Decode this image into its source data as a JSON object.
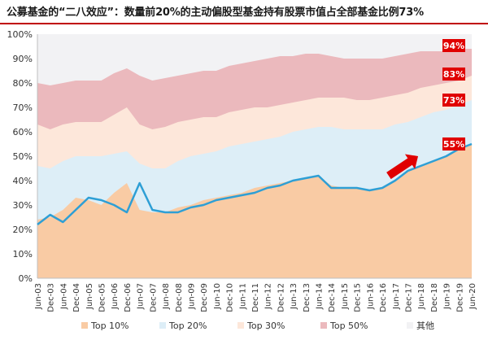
{
  "title": "公募基金的“二八效应”：数量前20%的主动偏股型基金持有股票市值占全部基金比例73%",
  "colors": {
    "title_rule": "#c00000",
    "top10": "#f9cba4",
    "top20": "#ddeef7",
    "top30": "#fde7da",
    "top50": "#ebb9bd",
    "other": "#f2f2f4",
    "line": "#2e9fd5",
    "badge": "#e00000",
    "arrow": "#e00000"
  },
  "chart_data": {
    "type": "area",
    "title": "",
    "xlabel": "",
    "ylabel": "",
    "ylim": [
      0,
      100
    ],
    "yticks": [
      "0%",
      "10%",
      "20%",
      "30%",
      "40%",
      "50%",
      "60%",
      "70%",
      "80%",
      "90%",
      "100%"
    ],
    "x": [
      "Jun-03",
      "Dec-03",
      "Jun-04",
      "Dec-04",
      "Jun-05",
      "Dec-05",
      "Jun-06",
      "Dec-06",
      "Jun-07",
      "Dec-07",
      "Jun-08",
      "Dec-08",
      "Jun-09",
      "Dec-09",
      "Jun-10",
      "Dec-10",
      "Jun-11",
      "Dec-11",
      "Jun-12",
      "Dec-12",
      "Jun-13",
      "Dec-13",
      "Jun-14",
      "Dec-14",
      "Jun-15",
      "Dec-15",
      "Jun-16",
      "Dec-16",
      "Jun-17",
      "Dec-17",
      "Jun-18",
      "Dec-18",
      "Jun-19",
      "Dec-19",
      "Jun-20"
    ],
    "grid": false,
    "legend_position": "bottom",
    "series": [
      {
        "name": "Top 10%",
        "kind": "area",
        "values": [
          24,
          25,
          28,
          33,
          32,
          30,
          35,
          39,
          28,
          27,
          27,
          29,
          30,
          32,
          33,
          34,
          35,
          37,
          38,
          39,
          40,
          41,
          42,
          38,
          37,
          37,
          36,
          37,
          40,
          44,
          46,
          48,
          50,
          53,
          55
        ]
      },
      {
        "name": "Top 20%",
        "kind": "area-cumulative",
        "values": [
          46,
          45,
          48,
          50,
          50,
          50,
          51,
          52,
          47,
          45,
          45,
          48,
          50,
          51,
          52,
          54,
          55,
          56,
          57,
          58,
          60,
          61,
          62,
          62,
          61,
          61,
          61,
          61,
          63,
          64,
          66,
          68,
          69,
          71,
          73
        ]
      },
      {
        "name": "Top 30%",
        "kind": "area-cumulative",
        "values": [
          63,
          61,
          63,
          64,
          64,
          64,
          67,
          70,
          63,
          61,
          62,
          64,
          65,
          66,
          66,
          68,
          69,
          70,
          70,
          71,
          72,
          73,
          74,
          74,
          74,
          73,
          73,
          74,
          75,
          76,
          78,
          79,
          80,
          81,
          83
        ]
      },
      {
        "name": "Top 50%",
        "kind": "area-cumulative",
        "values": [
          80,
          79,
          80,
          81,
          81,
          81,
          84,
          86,
          83,
          81,
          82,
          83,
          84,
          85,
          85,
          87,
          88,
          89,
          90,
          91,
          91,
          92,
          92,
          91,
          90,
          90,
          90,
          90,
          91,
          92,
          93,
          93,
          93,
          94,
          94
        ]
      },
      {
        "name": "其他",
        "kind": "area-cumulative",
        "values": [
          100,
          100,
          100,
          100,
          100,
          100,
          100,
          100,
          100,
          100,
          100,
          100,
          100,
          100,
          100,
          100,
          100,
          100,
          100,
          100,
          100,
          100,
          100,
          100,
          100,
          100,
          100,
          100,
          100,
          100,
          100,
          100,
          100,
          100,
          100
        ]
      }
    ],
    "line": {
      "values": [
        22,
        26,
        23,
        28,
        33,
        32,
        30,
        27,
        39,
        28,
        27,
        27,
        29,
        30,
        32,
        33,
        34,
        35,
        37,
        38,
        40,
        41,
        42,
        37,
        37,
        37,
        36,
        37,
        40,
        44,
        46,
        48,
        50,
        53,
        55
      ]
    },
    "annotations": [
      {
        "text": "94%",
        "value": 94
      },
      {
        "text": "83%",
        "value": 83
      },
      {
        "text": "73%",
        "value": 73
      },
      {
        "text": "55%",
        "value": 55
      }
    ]
  }
}
